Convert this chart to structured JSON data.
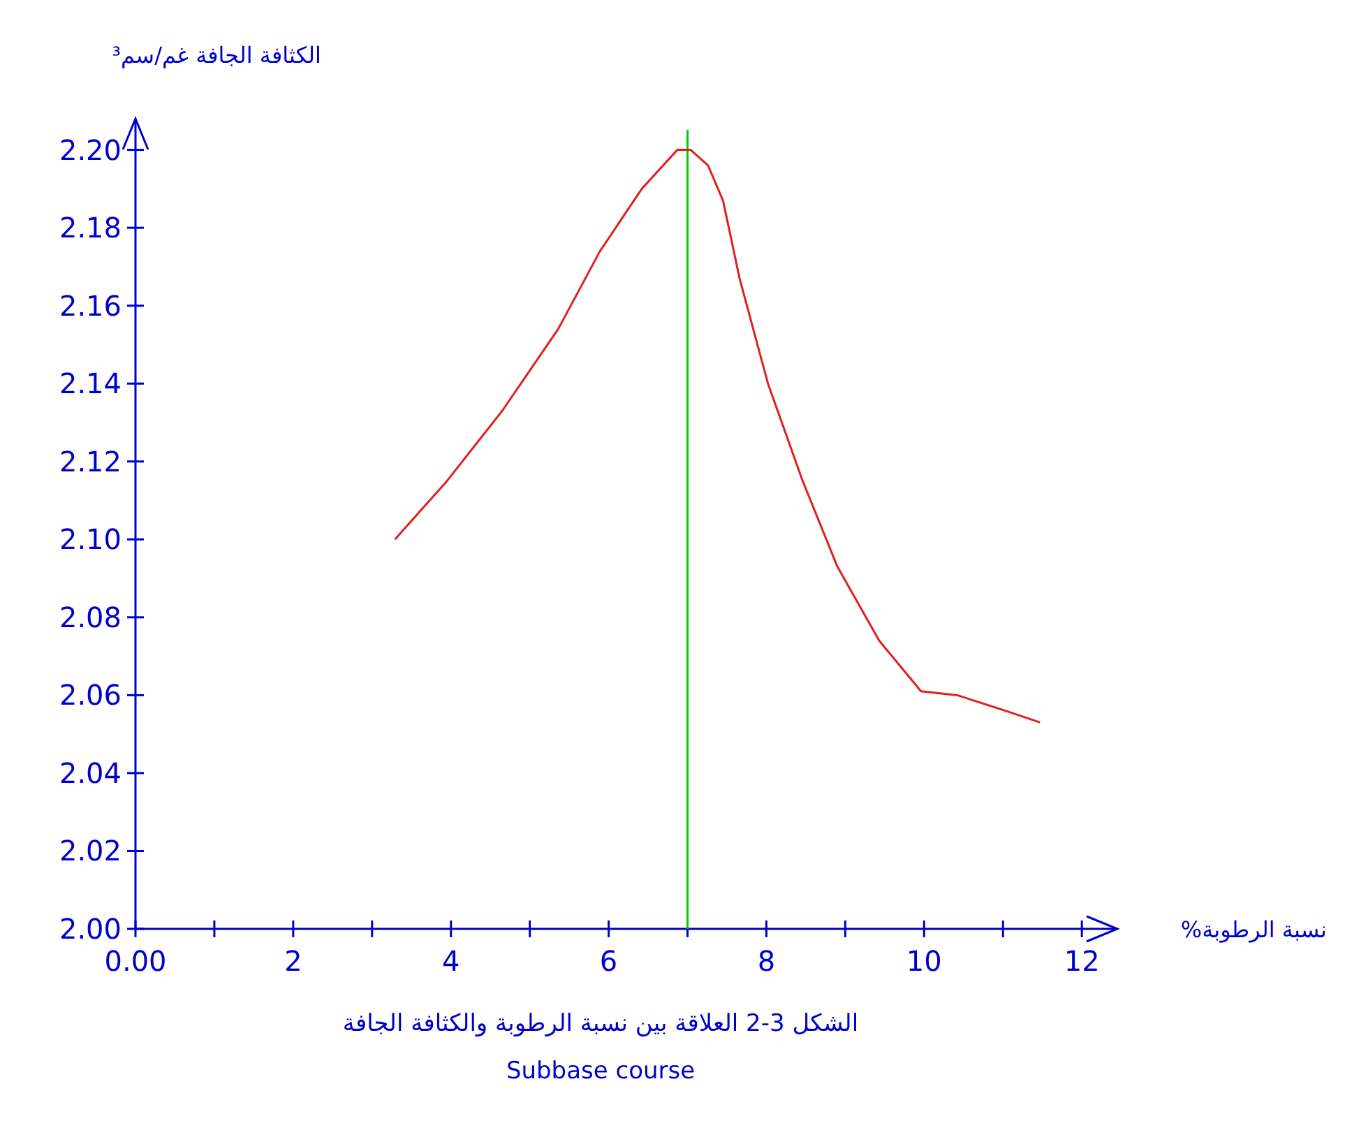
{
  "chart_data": {
    "type": "line",
    "ylabel": "الكثافة الجافة غم/سم³",
    "xlabel": "نسبة الرطوبة%",
    "annotations": [
      "الشكل 3-2 العلاقة بين نسبة الرطوبة والكثافة الجافة",
      "Subbase course"
    ],
    "x": [
      3.29,
      3.95,
      4.65,
      5.36,
      5.89,
      6.42,
      6.87,
      7.04,
      7.26,
      7.45,
      7.66,
      8.02,
      8.46,
      8.9,
      9.43,
      9.96,
      10.42,
      11.03,
      11.47
    ],
    "series": [
      {
        "color": "#e02020",
        "values": [
          2.1,
          2.115,
          2.133,
          2.154,
          2.174,
          2.19,
          2.2,
          2.2,
          2.196,
          2.187,
          2.167,
          2.14,
          2.115,
          2.093,
          2.074,
          2.061,
          2.06,
          2.056,
          2.053
        ]
      }
    ],
    "xlim": [
      0,
      12.45
    ],
    "ylim": [
      2.0,
      2.208
    ],
    "xticks": [
      {
        "value": 0,
        "label": "0.00"
      },
      {
        "value": 1,
        "label": null
      },
      2,
      {
        "value": 3,
        "label": null
      },
      4,
      {
        "value": 5,
        "label": null
      },
      6,
      {
        "value": 7,
        "label": null
      },
      8,
      {
        "value": 9,
        "label": null
      },
      10,
      {
        "value": 11,
        "label": null
      },
      12
    ],
    "yticks": [
      {
        "value": 2.0,
        "label": "2.00"
      },
      {
        "value": 2.02,
        "label": "2.02"
      },
      {
        "value": 2.04,
        "label": "2.04"
      },
      {
        "value": 2.06,
        "label": "2.06"
      },
      {
        "value": 2.08,
        "label": "2.08"
      },
      {
        "value": 2.1,
        "label": "2.10"
      },
      {
        "value": 2.12,
        "label": "2.12"
      },
      {
        "value": 2.14,
        "label": "2.14"
      },
      {
        "value": 2.16,
        "label": "2.16"
      },
      {
        "value": 2.18,
        "label": "2.18"
      },
      {
        "value": 2.2,
        "label": "2.20"
      }
    ],
    "ref_lines": [
      {
        "axis": "x",
        "value": 7,
        "color": "#00cc00"
      }
    ],
    "grid": false,
    "marker": "none",
    "line_style": "solid"
  }
}
